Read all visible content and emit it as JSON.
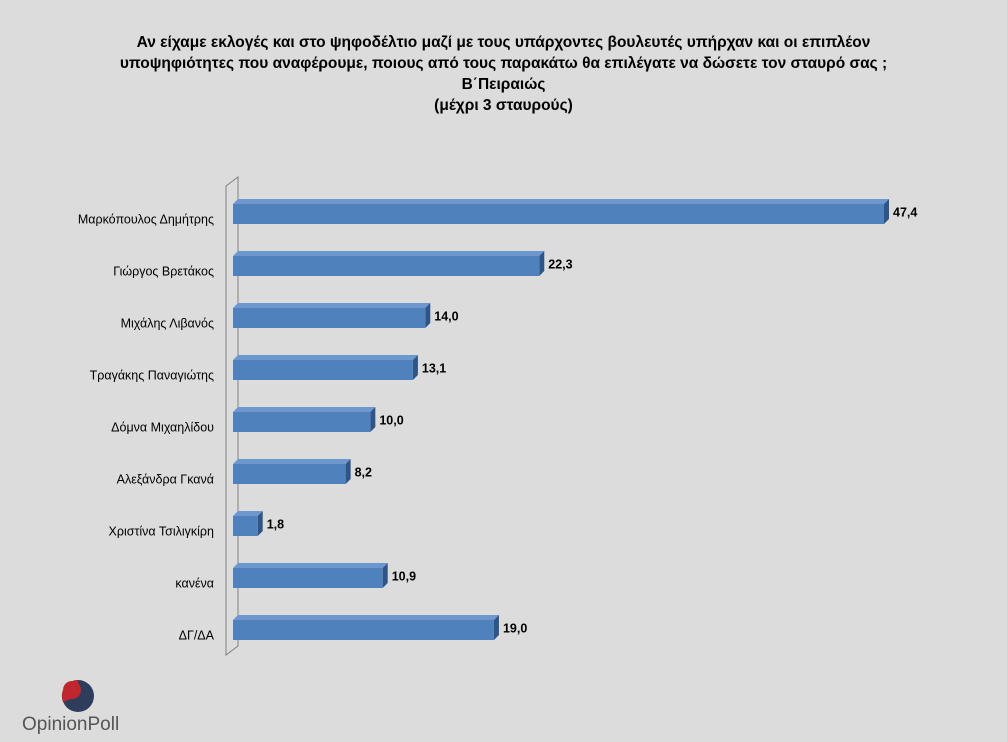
{
  "chart_data": {
    "type": "bar",
    "orientation": "horizontal",
    "title_lines": [
      "Αν είχαμε εκλογές και στο ψηφοδέλτιο μαζί με τους υπάρχοντες βουλευτές υπήρχαν και οι επιπλέον",
      "υποψηφιότητες που αναφέρουμε, ποιους από τους παρακάτω θα επιλέγατε  να δώσετε τον σταυρό σας ;",
      "Β΄Πειραιώς",
      "(μέχρι 3 σταυρούς)"
    ],
    "categories": [
      "Μαρκόπουλος Δημήτρης",
      "Γιώργος Βρετάκος",
      "Μιχάλης Λιβανός",
      "Τραγάκης Παναγιώτης",
      "Δόμνα Μιχαηλίδου",
      "Αλεξάνδρα Γκανά",
      "Χριστίνα Τσιλιγκίρη",
      "κανένα",
      "ΔΓ/ΔΑ"
    ],
    "values": [
      47.4,
      22.3,
      14.0,
      13.1,
      10.0,
      8.2,
      1.8,
      10.9,
      19.0
    ],
    "value_labels": [
      "47,4",
      "22,3",
      "14,0",
      "13,1",
      "10,0",
      "8,2",
      "1,8",
      "10,9",
      "19,0"
    ],
    "xlim": [
      0,
      50
    ],
    "grid": false,
    "legend": "none",
    "bar_color": "#4f81bd"
  },
  "logo": {
    "text_opinion": "Opinion",
    "text_poll": "Poll"
  }
}
